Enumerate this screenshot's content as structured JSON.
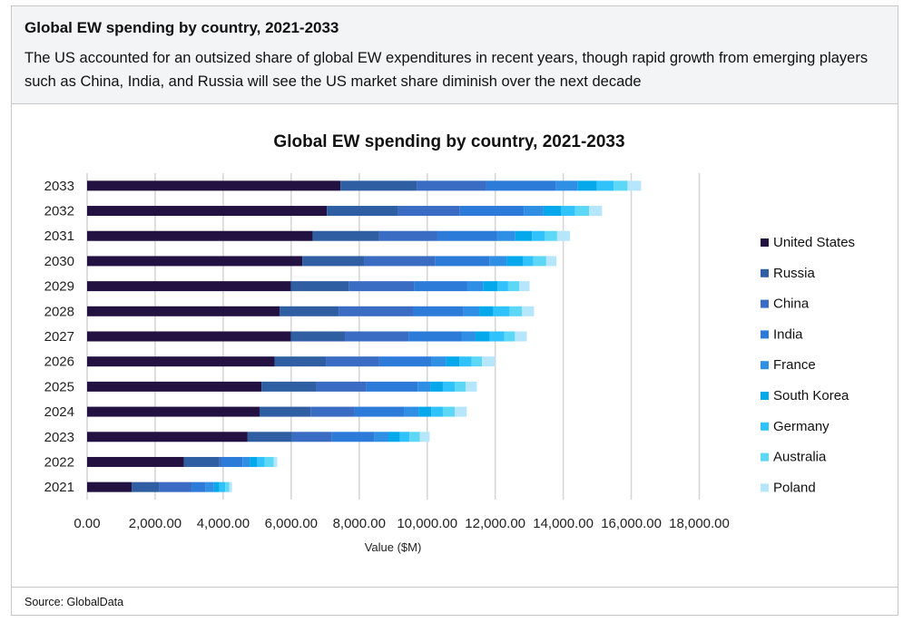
{
  "header": {
    "title": "Global EW spending by country, 2021-2033",
    "subtitle": "The US accounted for an outsized share of global EW expenditures in recent years, though rapid growth from emerging players such as China, India, and Russia will see the US market share diminish over the next decade"
  },
  "footer": {
    "source": "Source: GlobalData"
  },
  "chart_data": {
    "type": "bar",
    "orientation": "horizontal",
    "stacked": true,
    "title": "Global EW spending by country, 2021-2033",
    "xlabel": "Value ($M)",
    "ylabel": "",
    "xlim": [
      0,
      18000
    ],
    "x_ticks": [
      0,
      2000,
      4000,
      6000,
      8000,
      10000,
      12000,
      14000,
      16000,
      18000
    ],
    "x_tick_labels": [
      "0.00",
      "2,000.00",
      "4,000.00",
      "6,000.00",
      "8,000.00",
      "10,000.00",
      "12,000.00",
      "14,000.00",
      "16,000.00",
      "18,000.00"
    ],
    "grid": "vertical",
    "legend_position": "right",
    "categories": [
      "2021",
      "2022",
      "2023",
      "2024",
      "2025",
      "2026",
      "2027",
      "2028",
      "2029",
      "2030",
      "2031",
      "2032",
      "2033"
    ],
    "series": [
      {
        "name": "United States",
        "color": "#231141",
        "values": [
          1310,
          2850,
          4720,
          5070,
          5130,
          5510,
          5990,
          5660,
          5990,
          6330,
          6630,
          7050,
          7450
        ]
      },
      {
        "name": "Russia",
        "color": "#2f5ea3",
        "values": [
          820,
          1040,
          1300,
          1500,
          1610,
          1510,
          1590,
          1740,
          1700,
          1810,
          1960,
          2100,
          2240
        ]
      },
      {
        "name": "China",
        "color": "#396cc2",
        "values": [
          940,
          60,
          1180,
          1300,
          1470,
          1570,
          1870,
          2180,
          1920,
          2090,
          1710,
          1800,
          2050
        ]
      },
      {
        "name": "India",
        "color": "#2d7bd9",
        "values": [
          420,
          620,
          1250,
          1460,
          1510,
          1540,
          1570,
          1490,
          1570,
          1600,
          1760,
          1890,
          2050
        ]
      },
      {
        "name": "France",
        "color": "#2e8fe4",
        "values": [
          240,
          210,
          410,
          420,
          370,
          420,
          400,
          460,
          460,
          510,
          530,
          580,
          640
        ]
      },
      {
        "name": "South Korea",
        "color": "#05a8ea",
        "values": [
          160,
          220,
          340,
          370,
          370,
          400,
          420,
          410,
          430,
          480,
          490,
          520,
          560
        ]
      },
      {
        "name": "Germany",
        "color": "#30c2fb",
        "values": [
          170,
          220,
          280,
          340,
          350,
          350,
          430,
          480,
          310,
          300,
          380,
          410,
          490
        ]
      },
      {
        "name": "Australia",
        "color": "#5dd7f6",
        "values": [
          120,
          270,
          300,
          350,
          320,
          310,
          310,
          370,
          330,
          380,
          360,
          410,
          410
        ]
      },
      {
        "name": "Poland",
        "color": "#b6e6fb",
        "values": [
          80,
          100,
          290,
          350,
          330,
          380,
          350,
          350,
          300,
          300,
          380,
          380,
          400
        ]
      }
    ]
  }
}
